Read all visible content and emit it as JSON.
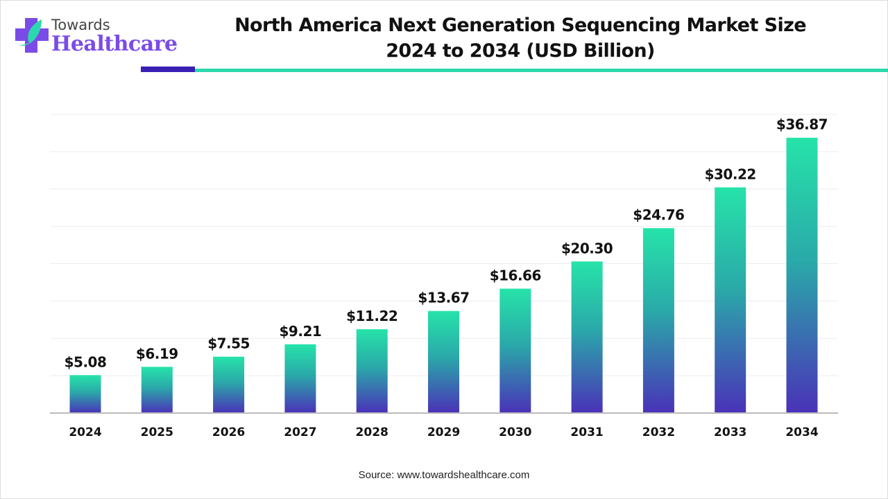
{
  "logo": {
    "line1": "Towards",
    "line2": "Healthcare"
  },
  "title_line1": "North America Next Generation Sequencing Market Size",
  "title_line2": "2024 to 2034 (USD Billion)",
  "source": "Source: www.towardshealthcare.com",
  "colors": {
    "bar_top": "#26e3a9",
    "bar_bottom": "#4a32b8",
    "accent_purple": "#3a1fb5",
    "accent_teal": "#2bd9ad"
  },
  "chart_data": {
    "type": "bar",
    "title": "North America Next Generation Sequencing Market Size 2024 to 2034 (USD Billion)",
    "categories": [
      "2024",
      "2025",
      "2026",
      "2027",
      "2028",
      "2029",
      "2030",
      "2031",
      "2032",
      "2033",
      "2034"
    ],
    "values": [
      5.08,
      6.19,
      7.55,
      9.21,
      11.22,
      13.67,
      16.66,
      20.3,
      24.76,
      30.22,
      36.87
    ],
    "labels": [
      "$5.08",
      "$6.19",
      "$7.55",
      "$9.21",
      "$11.22",
      "$13.67",
      "$16.66",
      "$20.30",
      "$24.76",
      "$30.22",
      "$36.87"
    ],
    "xlabel": "",
    "ylabel": "",
    "ylim": [
      0,
      40
    ],
    "grid": true,
    "gridStep": 5
  }
}
